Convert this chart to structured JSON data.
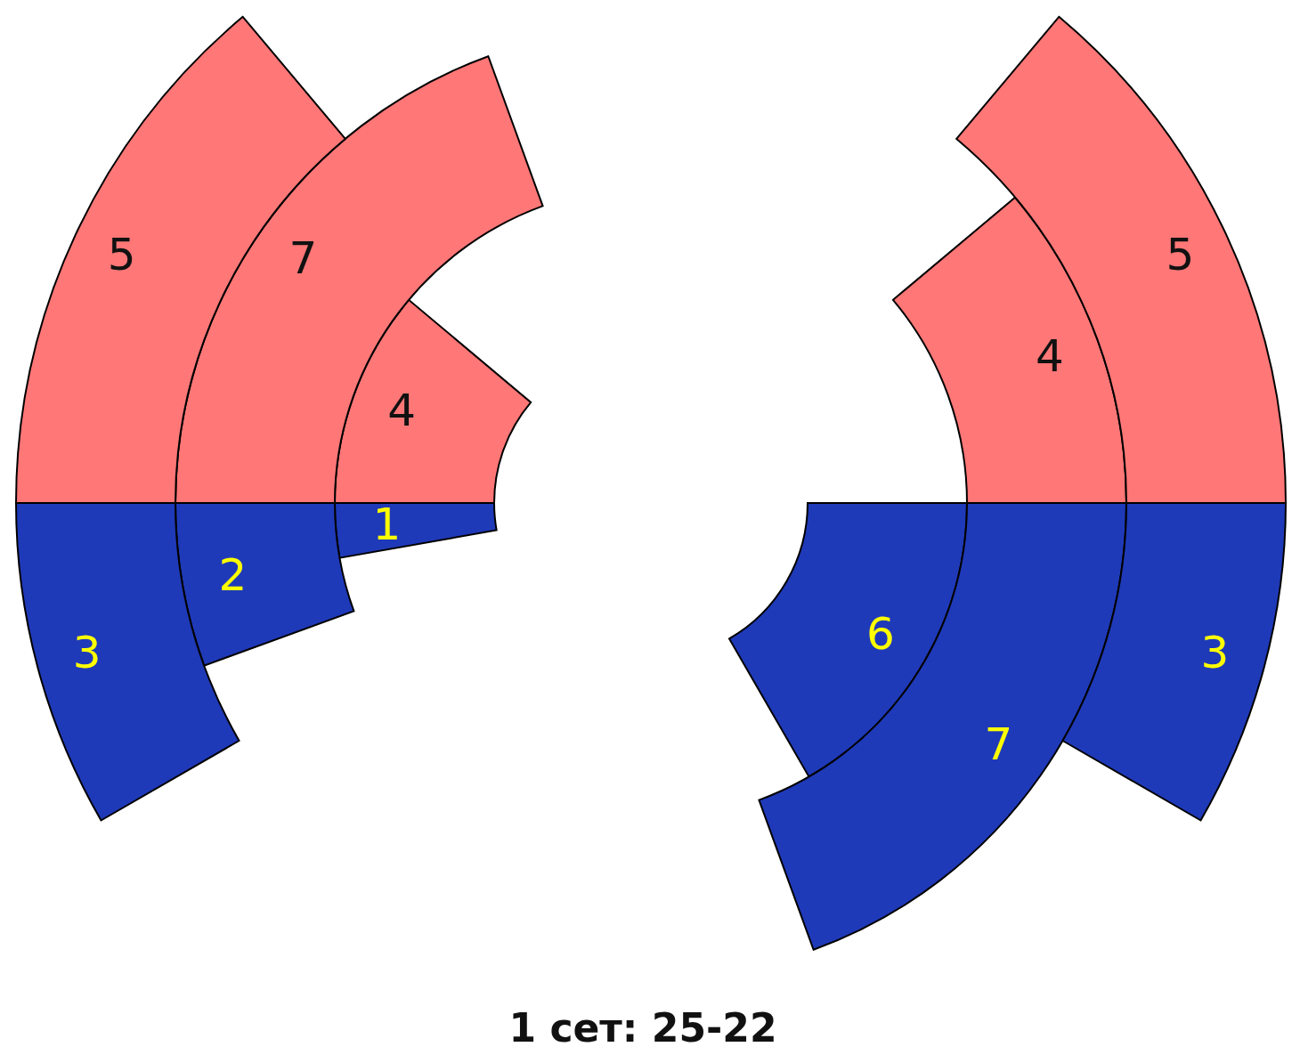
{
  "chart_data": {
    "type": "donut",
    "title": "1 сет: 25-22",
    "categories": [
      null,
      null,
      null,
      null
    ],
    "series": [
      {
        "colors": [
          "#ff7777",
          "#1f3ab8",
          "#1f3ab8",
          "#ff7777"
        ],
        "values": [
          5,
          3,
          3,
          5
        ]
      },
      {
        "colors": [
          "#ff7777",
          "#1f3ab8",
          "#1f3ab8",
          "#ff7777"
        ],
        "values": [
          4,
          7,
          2,
          7
        ]
      },
      {
        "colors": [
          "#ff7777",
          "#1f3ab8",
          "#1f3ab8",
          "#ff7777"
        ],
        "values": [
          null,
          6,
          1,
          4
        ]
      }
    ],
    "data_labels": true
  }
}
